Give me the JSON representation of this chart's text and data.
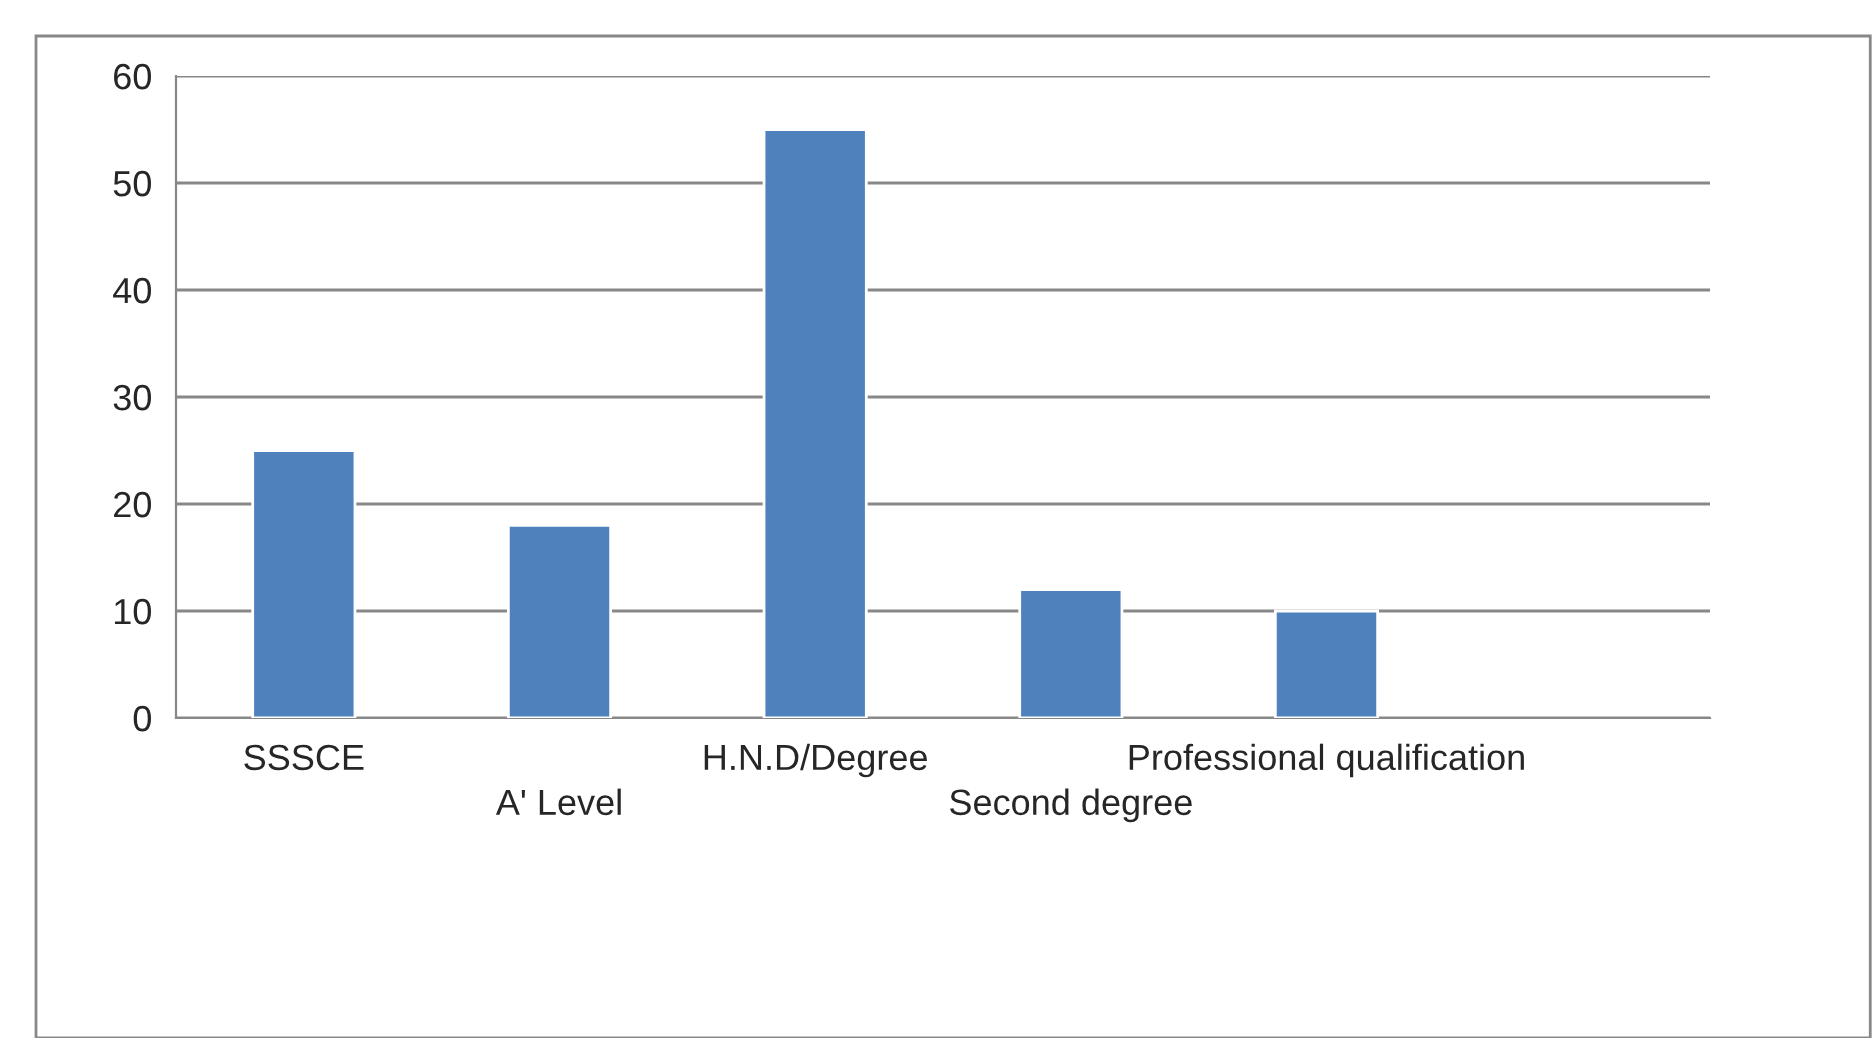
{
  "chart_data": {
    "type": "bar",
    "categories": [
      "SSSCE",
      "A' Level",
      "H.N.D/Degree",
      "Second degree",
      "Professional qualification",
      null
    ],
    "values": [
      25,
      18,
      55,
      12,
      10,
      null
    ],
    "color": "#4f81bd",
    "ylim": [
      0,
      60
    ],
    "yticks": [
      0,
      10,
      20,
      30,
      40,
      50,
      60
    ],
    "grid": "y"
  }
}
